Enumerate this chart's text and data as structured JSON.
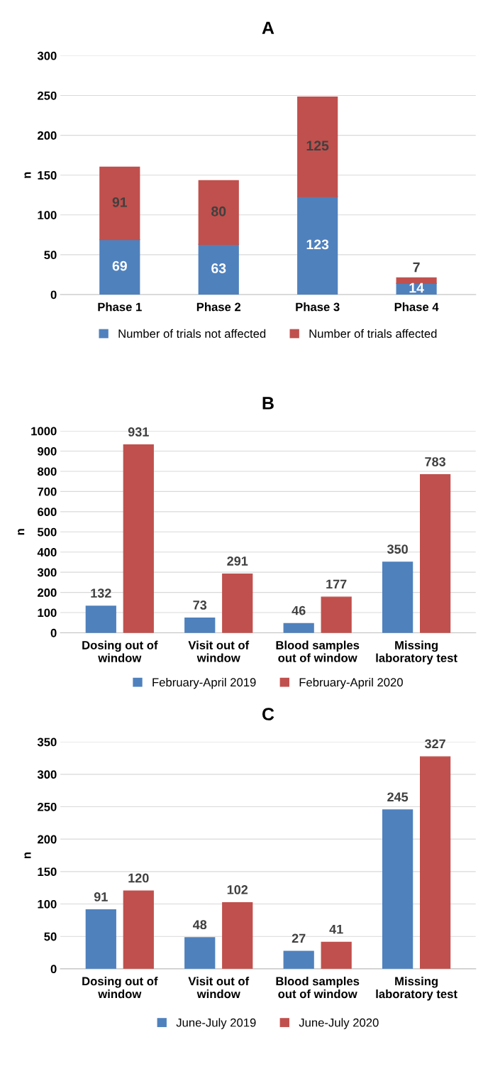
{
  "chart_data": [
    {
      "type": "bar",
      "title": "A",
      "ylabel": "n",
      "categories": [
        "Phase 1",
        "Phase 2",
        "Phase 3",
        "Phase 4"
      ],
      "stacked": true,
      "data_labels": true,
      "grid": "y",
      "legend": "bottom",
      "ylim": [
        0,
        300
      ],
      "yticks": [
        0,
        50,
        100,
        150,
        200,
        250,
        300
      ],
      "series": [
        {
          "name": "Number of trials not affected",
          "color": "#4f81bd",
          "values": [
            69,
            63,
            123,
            14
          ]
        },
        {
          "name": "Number of trials affected",
          "color": "#c0504d",
          "values": [
            91,
            80,
            125,
            7
          ]
        }
      ]
    },
    {
      "type": "bar",
      "title": "B",
      "ylabel": "n",
      "categories": [
        "Dosing out of\nwindow",
        "Visit out of\nwindow",
        "Blood samples\nout of window",
        "Missing\nlaboratory test"
      ],
      "data_labels": true,
      "grid": "y",
      "legend": "bottom",
      "ylim": [
        0,
        1000
      ],
      "yticks": [
        0,
        100,
        200,
        300,
        400,
        500,
        600,
        700,
        800,
        900,
        1000
      ],
      "series": [
        {
          "name": "February-April 2019",
          "color": "#4f81bd",
          "values": [
            132,
            73,
            46,
            350
          ]
        },
        {
          "name": "February-April 2020",
          "color": "#c0504d",
          "values": [
            931,
            291,
            177,
            783
          ]
        }
      ]
    },
    {
      "type": "bar",
      "title": "C",
      "ylabel": "n",
      "categories": [
        "Dosing out of\nwindow",
        "Visit out of\nwindow",
        "Blood samples\nout of window",
        "Missing\nlaboratory test"
      ],
      "data_labels": true,
      "grid": "y",
      "legend": "bottom",
      "ylim": [
        0,
        350
      ],
      "yticks": [
        0,
        50,
        100,
        150,
        200,
        250,
        300,
        350
      ],
      "series": [
        {
          "name": "June-July 2019",
          "color": "#4f81bd",
          "values": [
            91,
            48,
            27,
            245
          ]
        },
        {
          "name": "June-July 2020",
          "color": "#c0504d",
          "values": [
            120,
            102,
            41,
            327
          ]
        }
      ]
    }
  ]
}
